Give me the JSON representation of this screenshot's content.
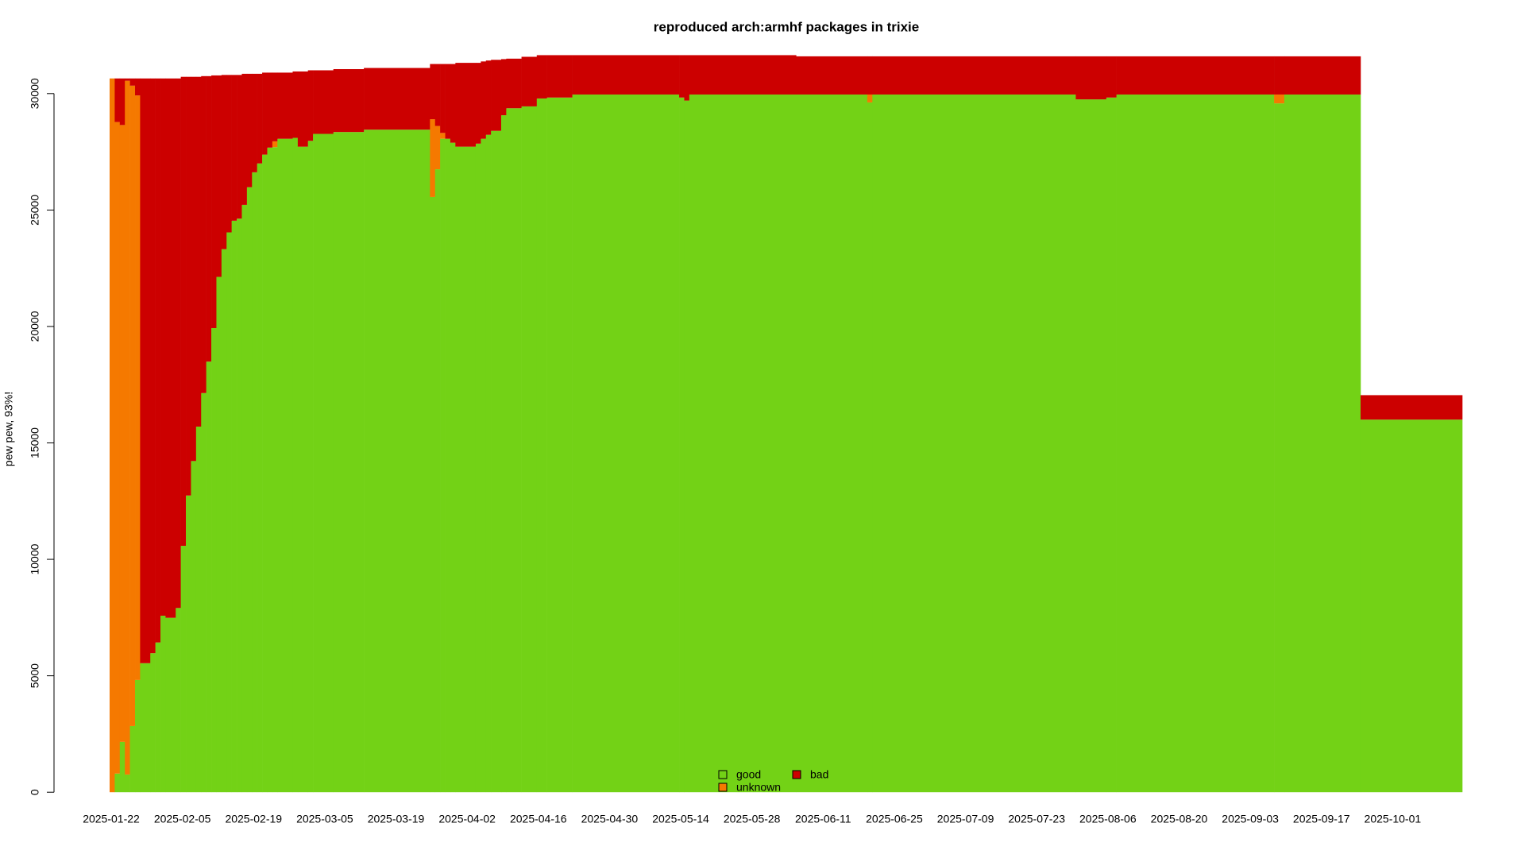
{
  "chart_data": {
    "type": "stacked-bar",
    "title": "reproduced arch:armhf packages in trixie",
    "ylabel": "pew pew, 93%!",
    "x": [
      "2025-01-22",
      "2025-01-23",
      "2025-01-24",
      "2025-01-25",
      "2025-01-26",
      "2025-01-27",
      "2025-01-28",
      "2025-01-30",
      "2025-01-31",
      "2025-02-01",
      "2025-02-02",
      "2025-02-04",
      "2025-02-05",
      "2025-02-06",
      "2025-02-07",
      "2025-02-08",
      "2025-02-09",
      "2025-02-10",
      "2025-02-11",
      "2025-02-12",
      "2025-02-13",
      "2025-02-14",
      "2025-02-15",
      "2025-02-16",
      "2025-02-17",
      "2025-02-18",
      "2025-02-19",
      "2025-02-20",
      "2025-02-21",
      "2025-02-22",
      "2025-02-23",
      "2025-02-24",
      "2025-02-27",
      "2025-02-28",
      "2025-03-02",
      "2025-03-03",
      "2025-03-07",
      "2025-03-13",
      "2025-03-26",
      "2025-03-27",
      "2025-03-28",
      "2025-03-29",
      "2025-03-30",
      "2025-03-31",
      "2025-04-04",
      "2025-04-05",
      "2025-04-06",
      "2025-04-07",
      "2025-04-09",
      "2025-04-10",
      "2025-04-13",
      "2025-04-16",
      "2025-04-18",
      "2025-04-23",
      "2025-05-14",
      "2025-05-15",
      "2025-05-16",
      "2025-06-06",
      "2025-06-20",
      "2025-06-21",
      "2025-07-31",
      "2025-08-06",
      "2025-08-08",
      "2025-09-08",
      "2025-09-10",
      "2025-09-25"
    ],
    "series": [
      {
        "name": "good",
        "color": "#73d216",
        "values": [
          0,
          800,
          2160,
          760,
          2840,
          4820,
          5540,
          5970,
          6430,
          7580,
          7490,
          7910,
          10580,
          12740,
          14220,
          15700,
          17140,
          18490,
          19930,
          22130,
          23320,
          24040,
          24540,
          24630,
          25220,
          25980,
          26620,
          27000,
          27380,
          27680,
          27700,
          28060,
          28100,
          27720,
          27970,
          28270,
          28350,
          28450,
          25560,
          26750,
          28060,
          28060,
          27890,
          27720,
          27850,
          28060,
          28230,
          28400,
          29070,
          29370,
          29450,
          29790,
          29830,
          29960,
          29830,
          29700,
          29960,
          29960,
          29620,
          29960,
          29750,
          29830,
          29960,
          29580,
          29960,
          16000
        ]
      },
      {
        "name": "unknown",
        "color": "#f57900",
        "values": [
          30650,
          27980,
          26490,
          29790,
          27500,
          25100,
          0,
          0,
          0,
          0,
          0,
          0,
          0,
          0,
          0,
          0,
          0,
          0,
          0,
          0,
          0,
          0,
          0,
          0,
          0,
          0,
          0,
          0,
          0,
          0,
          250,
          0,
          0,
          0,
          0,
          0,
          0,
          0,
          3340,
          1860,
          250,
          0,
          0,
          0,
          0,
          0,
          0,
          0,
          0,
          0,
          0,
          0,
          0,
          0,
          0,
          0,
          0,
          0,
          340,
          0,
          0,
          0,
          0,
          380,
          0,
          0
        ]
      },
      {
        "name": "bad",
        "color": "#cc0000",
        "values": [
          0,
          1870,
          2000,
          100,
          310,
          730,
          25110,
          24680,
          24220,
          23070,
          23160,
          22740,
          20140,
          17980,
          16500,
          15020,
          13610,
          12260,
          10850,
          8650,
          7480,
          6760,
          6260,
          6170,
          5630,
          4870,
          4230,
          3850,
          3520,
          3220,
          2950,
          2840,
          2850,
          3230,
          3030,
          2730,
          2700,
          2650,
          2370,
          2660,
          2960,
          3210,
          3380,
          3600,
          3470,
          3320,
          3190,
          3050,
          2410,
          2130,
          2130,
          1860,
          1820,
          1690,
          1820,
          1950,
          1690,
          1640,
          1640,
          1640,
          1850,
          1770,
          1640,
          1640,
          1640,
          1050
        ]
      }
    ],
    "xlim": [
      "2025-01-22",
      "2025-10-14"
    ],
    "xticks": [
      "2025-01-22",
      "2025-02-05",
      "2025-02-19",
      "2025-03-05",
      "2025-03-19",
      "2025-04-02",
      "2025-04-16",
      "2025-04-30",
      "2025-05-14",
      "2025-05-28",
      "2025-06-11",
      "2025-06-25",
      "2025-07-09",
      "2025-07-23",
      "2025-08-06",
      "2025-08-20",
      "2025-09-03",
      "2025-09-17",
      "2025-10-01"
    ],
    "ylim": [
      0,
      30000
    ],
    "yticks": [
      0,
      5000,
      10000,
      15000,
      20000,
      25000,
      30000
    ]
  }
}
